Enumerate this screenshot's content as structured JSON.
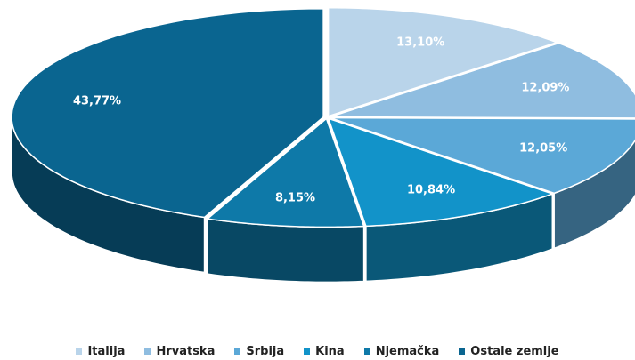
{
  "chart_data": {
    "type": "pie",
    "categories": [
      "Italija",
      "Hrvatska",
      "Srbija",
      "Kina",
      "Njemačka",
      "Ostale zemlje"
    ],
    "values": [
      13.1,
      12.09,
      12.05,
      10.84,
      8.15,
      43.77
    ],
    "value_labels": [
      "13,10%",
      "12,09%",
      "12,05%",
      "10,84%",
      "8,15%",
      "43,77%"
    ],
    "colors": [
      "#b9d4ea",
      "#8fbde0",
      "#5ba8d7",
      "#1293c9",
      "#0e79a8",
      "#0a6590"
    ],
    "legend": "bottom"
  }
}
